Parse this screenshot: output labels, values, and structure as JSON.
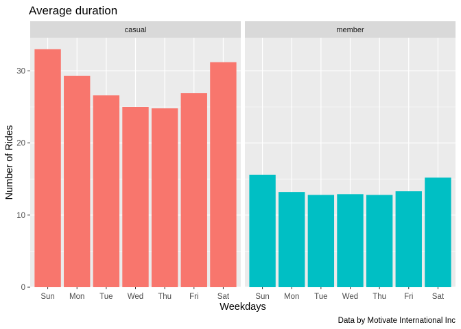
{
  "chart_data": {
    "type": "bar",
    "title": "Average duration",
    "xlabel": "Weekdays",
    "ylabel": "Number of Rides",
    "caption": "Data by Motivate International Inc",
    "categories": [
      "Sun",
      "Mon",
      "Tue",
      "Wed",
      "Thu",
      "Fri",
      "Sat"
    ],
    "ylim": [
      0,
      34.6
    ],
    "yticks": [
      "0",
      "10",
      "20",
      "30"
    ],
    "facets": [
      {
        "name": "casual",
        "color": "#F8766D",
        "values": [
          33.0,
          29.3,
          26.6,
          25.0,
          24.8,
          26.9,
          31.2
        ]
      },
      {
        "name": "member",
        "color": "#00BFC4",
        "values": [
          15.6,
          13.2,
          12.8,
          12.9,
          12.8,
          13.3,
          15.2
        ]
      }
    ],
    "grid": true,
    "legend": "none"
  }
}
